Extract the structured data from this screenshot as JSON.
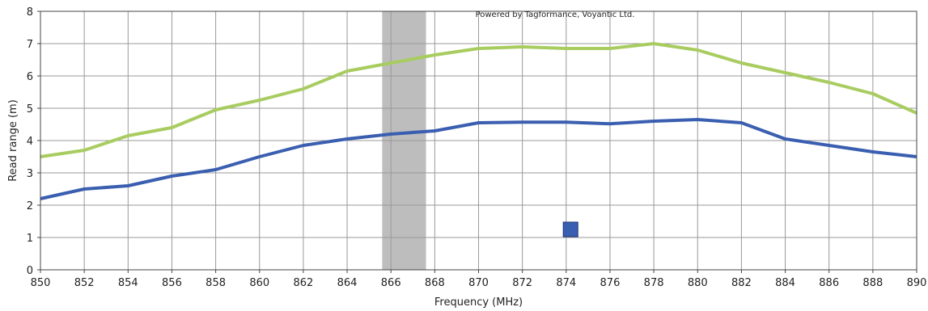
{
  "chart_data": {
    "type": "line",
    "credit": "Powered by Tagformance, Voyantic Ltd.",
    "xlabel": "Frequency (MHz)",
    "ylabel": "Read range (m)",
    "xlim": [
      850,
      890
    ],
    "ylim": [
      0,
      8
    ],
    "xticks": [
      850,
      852,
      854,
      856,
      858,
      860,
      862,
      864,
      866,
      868,
      870,
      872,
      874,
      876,
      878,
      880,
      882,
      884,
      886,
      888,
      890
    ],
    "yticks": [
      0,
      1,
      2,
      3,
      4,
      5,
      6,
      7,
      8
    ],
    "grid": true,
    "highlight_band": [
      865.6,
      867.6
    ],
    "marker": {
      "x": 874.2,
      "y": 1.25,
      "color": "#3a5eb0"
    },
    "series": [
      {
        "color": "#a8cc60",
        "x": [
          850,
          852,
          854,
          856,
          858,
          860,
          862,
          864,
          866,
          868,
          870,
          872,
          874,
          876,
          878,
          880,
          882,
          884,
          886,
          888,
          890
        ],
        "values": [
          3.5,
          3.7,
          4.15,
          4.4,
          4.95,
          5.25,
          5.6,
          6.15,
          6.4,
          6.65,
          6.85,
          6.9,
          6.85,
          6.85,
          7.0,
          6.8,
          6.4,
          6.1,
          5.8,
          5.45,
          4.85
        ]
      },
      {
        "color": "#3a5eb0",
        "x": [
          850,
          852,
          854,
          856,
          858,
          860,
          862,
          864,
          866,
          868,
          870,
          872,
          874,
          876,
          878,
          880,
          882,
          884,
          886,
          888,
          890
        ],
        "values": [
          2.2,
          2.5,
          2.6,
          2.9,
          3.1,
          3.5,
          3.85,
          4.05,
          4.2,
          4.3,
          4.55,
          4.57,
          4.57,
          4.52,
          4.6,
          4.65,
          4.55,
          4.05,
          3.85,
          3.65,
          3.5
        ]
      }
    ]
  }
}
